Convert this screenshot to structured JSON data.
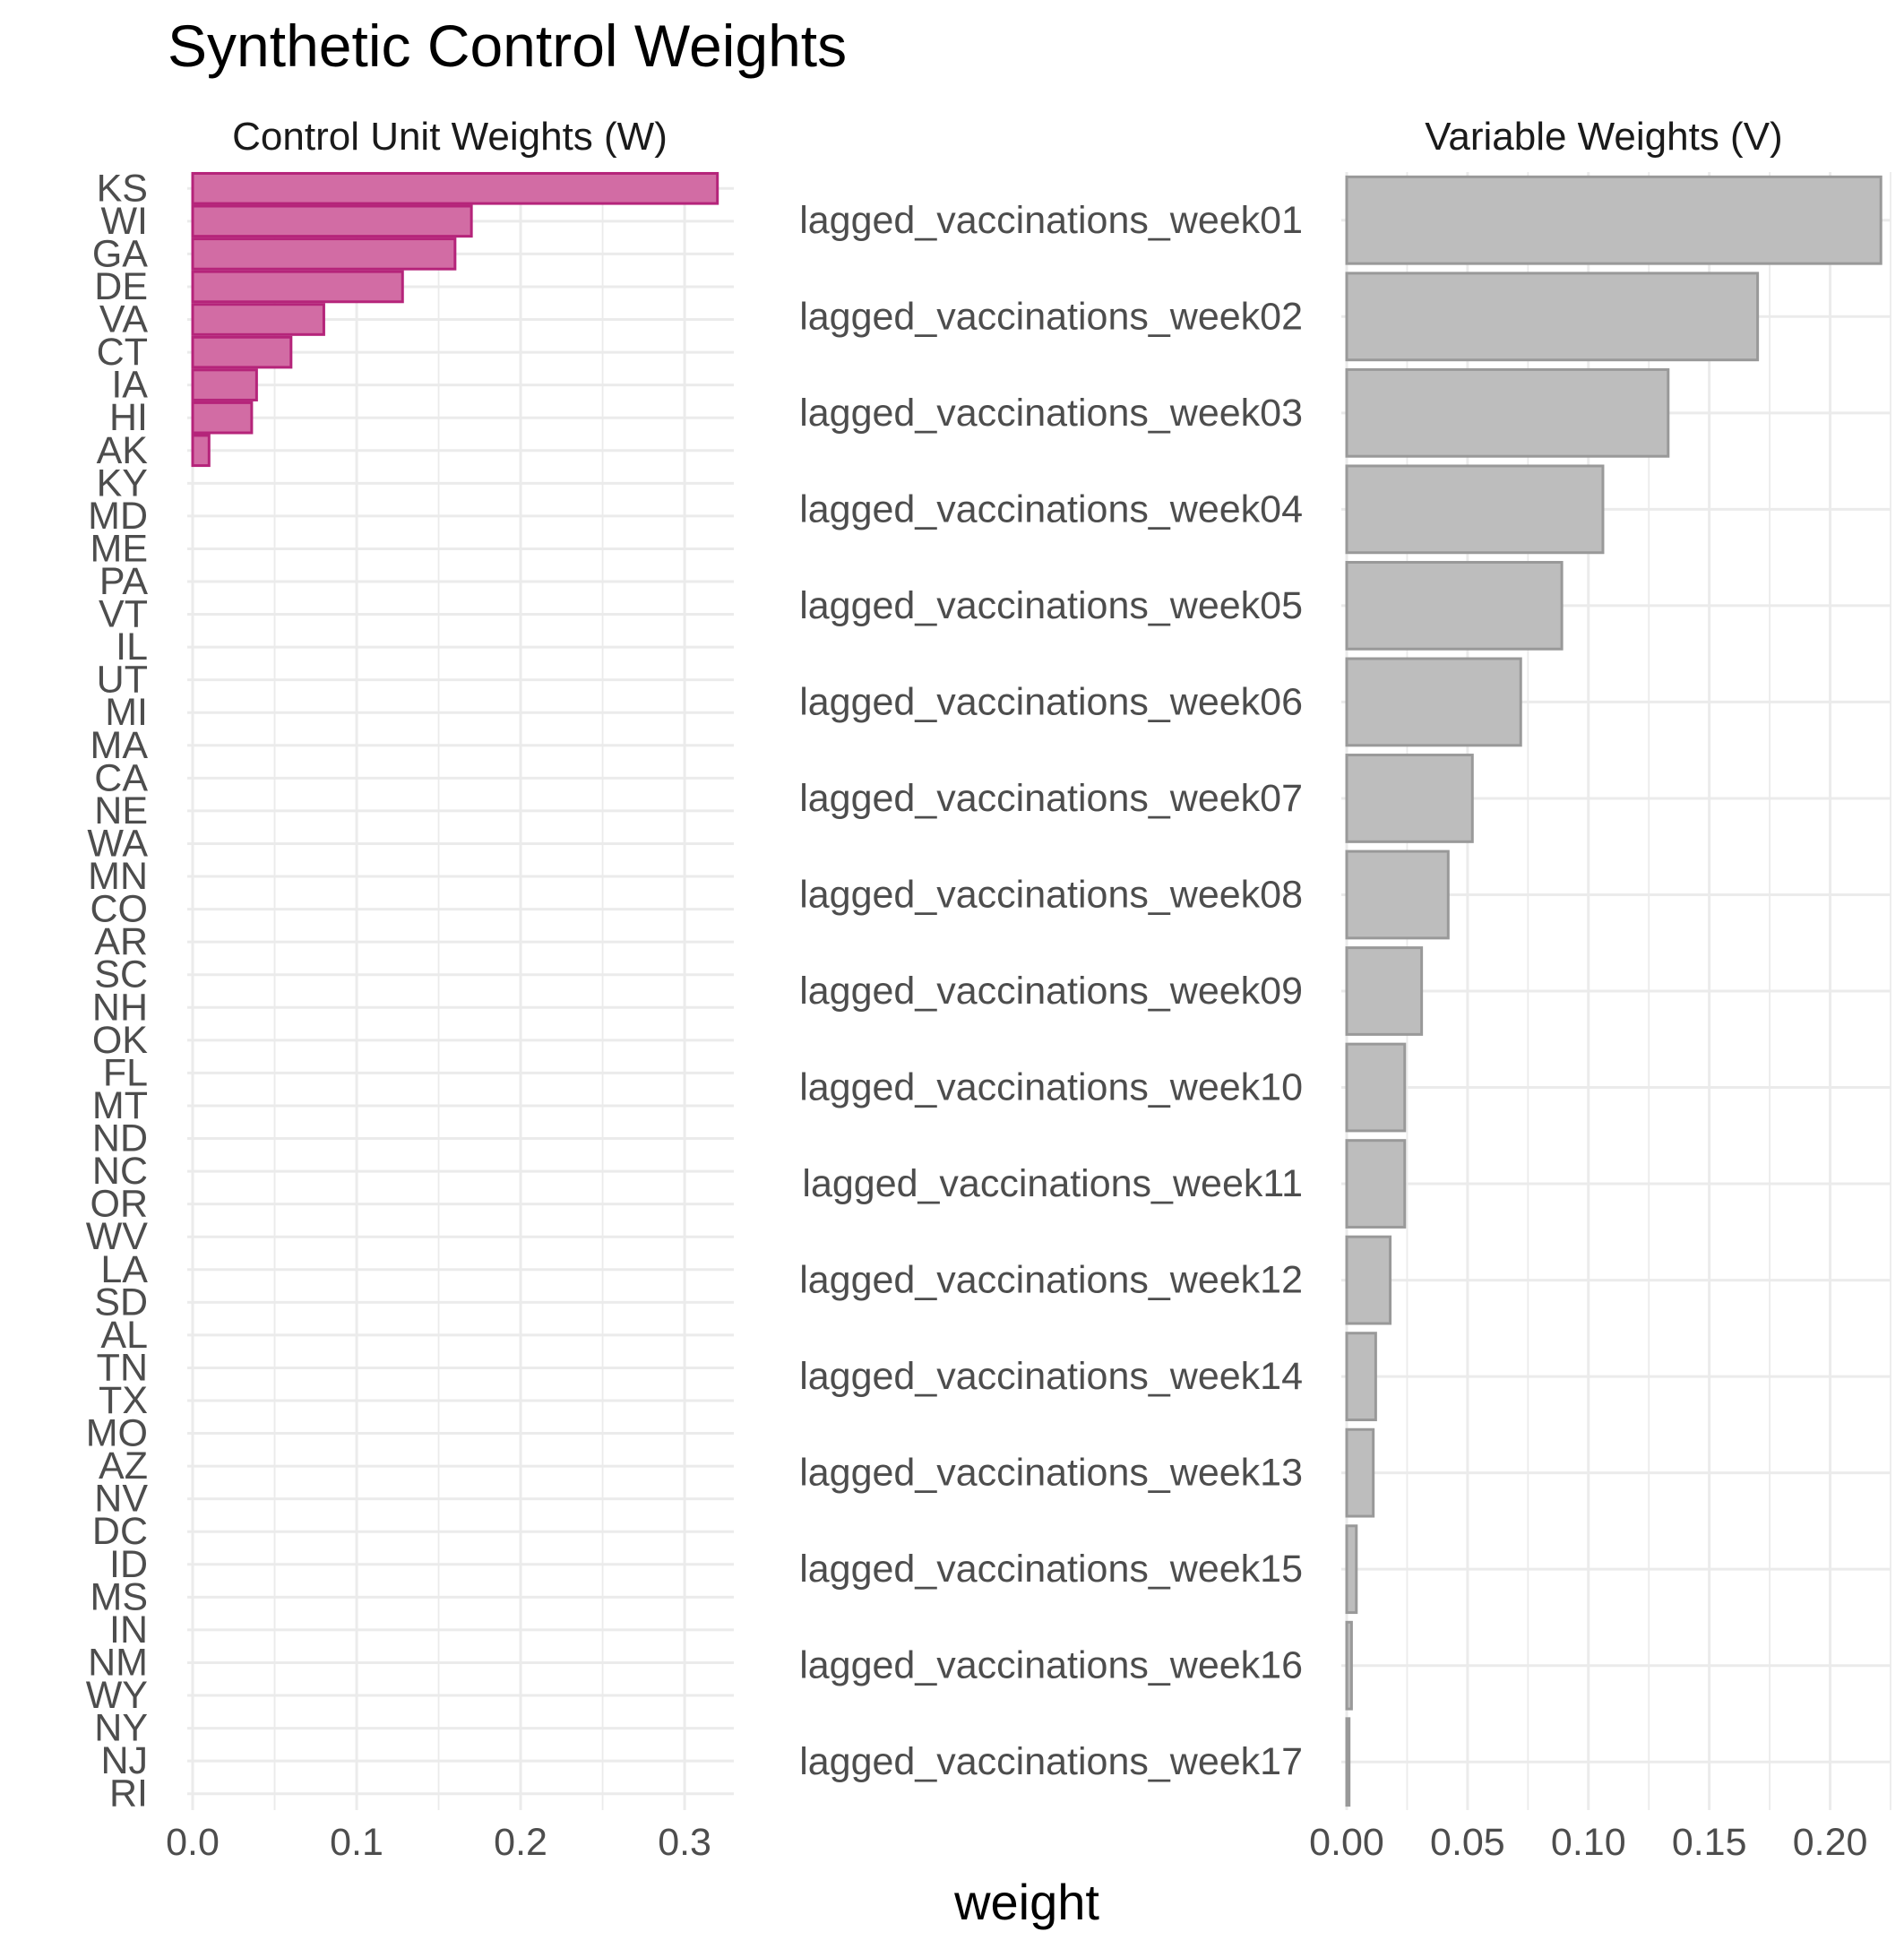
{
  "chart_data": {
    "type": "bar",
    "title": "Synthetic Control Weights",
    "xlabel": "weight",
    "colors": {
      "w_fill": "#d26ca4",
      "w_stroke": "#b5247a",
      "v_fill": "#bdbdbd",
      "v_stroke": "#999999",
      "grid": "#ebebeb"
    },
    "panels": [
      {
        "title": "Control Unit Weights (W)",
        "orientation": "horizontal",
        "xlim": [
          0,
          0.33
        ],
        "xticks": [
          0.0,
          0.1,
          0.2,
          0.3
        ],
        "xtick_labels": [
          "0.0",
          "0.1",
          "0.2",
          "0.3"
        ],
        "categories": [
          "KS",
          "WI",
          "GA",
          "DE",
          "VA",
          "CT",
          "IA",
          "HI",
          "AK",
          "KY",
          "MD",
          "ME",
          "PA",
          "VT",
          "IL",
          "UT",
          "MI",
          "MA",
          "CA",
          "NE",
          "WA",
          "MN",
          "CO",
          "AR",
          "SC",
          "NH",
          "OK",
          "FL",
          "MT",
          "ND",
          "NC",
          "OR",
          "WV",
          "LA",
          "SD",
          "AL",
          "TN",
          "TX",
          "MO",
          "AZ",
          "NV",
          "DC",
          "ID",
          "MS",
          "IN",
          "NM",
          "WY",
          "NY",
          "NJ",
          "RI"
        ],
        "values": [
          0.32,
          0.17,
          0.16,
          0.128,
          0.08,
          0.06,
          0.039,
          0.036,
          0.01,
          0,
          0,
          0,
          0,
          0,
          0,
          0,
          0,
          0,
          0,
          0,
          0,
          0,
          0,
          0,
          0,
          0,
          0,
          0,
          0,
          0,
          0,
          0,
          0,
          0,
          0,
          0,
          0,
          0,
          0,
          0,
          0,
          0,
          0,
          0,
          0,
          0,
          0,
          0,
          0,
          0
        ]
      },
      {
        "title": "Variable Weights (V)",
        "orientation": "horizontal",
        "xlim": [
          0,
          0.225
        ],
        "xticks": [
          0.0,
          0.05,
          0.1,
          0.15,
          0.2
        ],
        "xtick_labels": [
          "0.00",
          "0.05",
          "0.10",
          "0.15",
          "0.20"
        ],
        "categories": [
          "lagged_vaccinations_week01",
          "lagged_vaccinations_week02",
          "lagged_vaccinations_week03",
          "lagged_vaccinations_week04",
          "lagged_vaccinations_week05",
          "lagged_vaccinations_week06",
          "lagged_vaccinations_week07",
          "lagged_vaccinations_week08",
          "lagged_vaccinations_week09",
          "lagged_vaccinations_week10",
          "lagged_vaccinations_week11",
          "lagged_vaccinations_week12",
          "lagged_vaccinations_week14",
          "lagged_vaccinations_week13",
          "lagged_vaccinations_week15",
          "lagged_vaccinations_week16",
          "lagged_vaccinations_week17"
        ],
        "values": [
          0.221,
          0.17,
          0.133,
          0.106,
          0.089,
          0.072,
          0.052,
          0.042,
          0.031,
          0.024,
          0.024,
          0.018,
          0.012,
          0.011,
          0.004,
          0.002,
          0.001
        ]
      }
    ]
  }
}
